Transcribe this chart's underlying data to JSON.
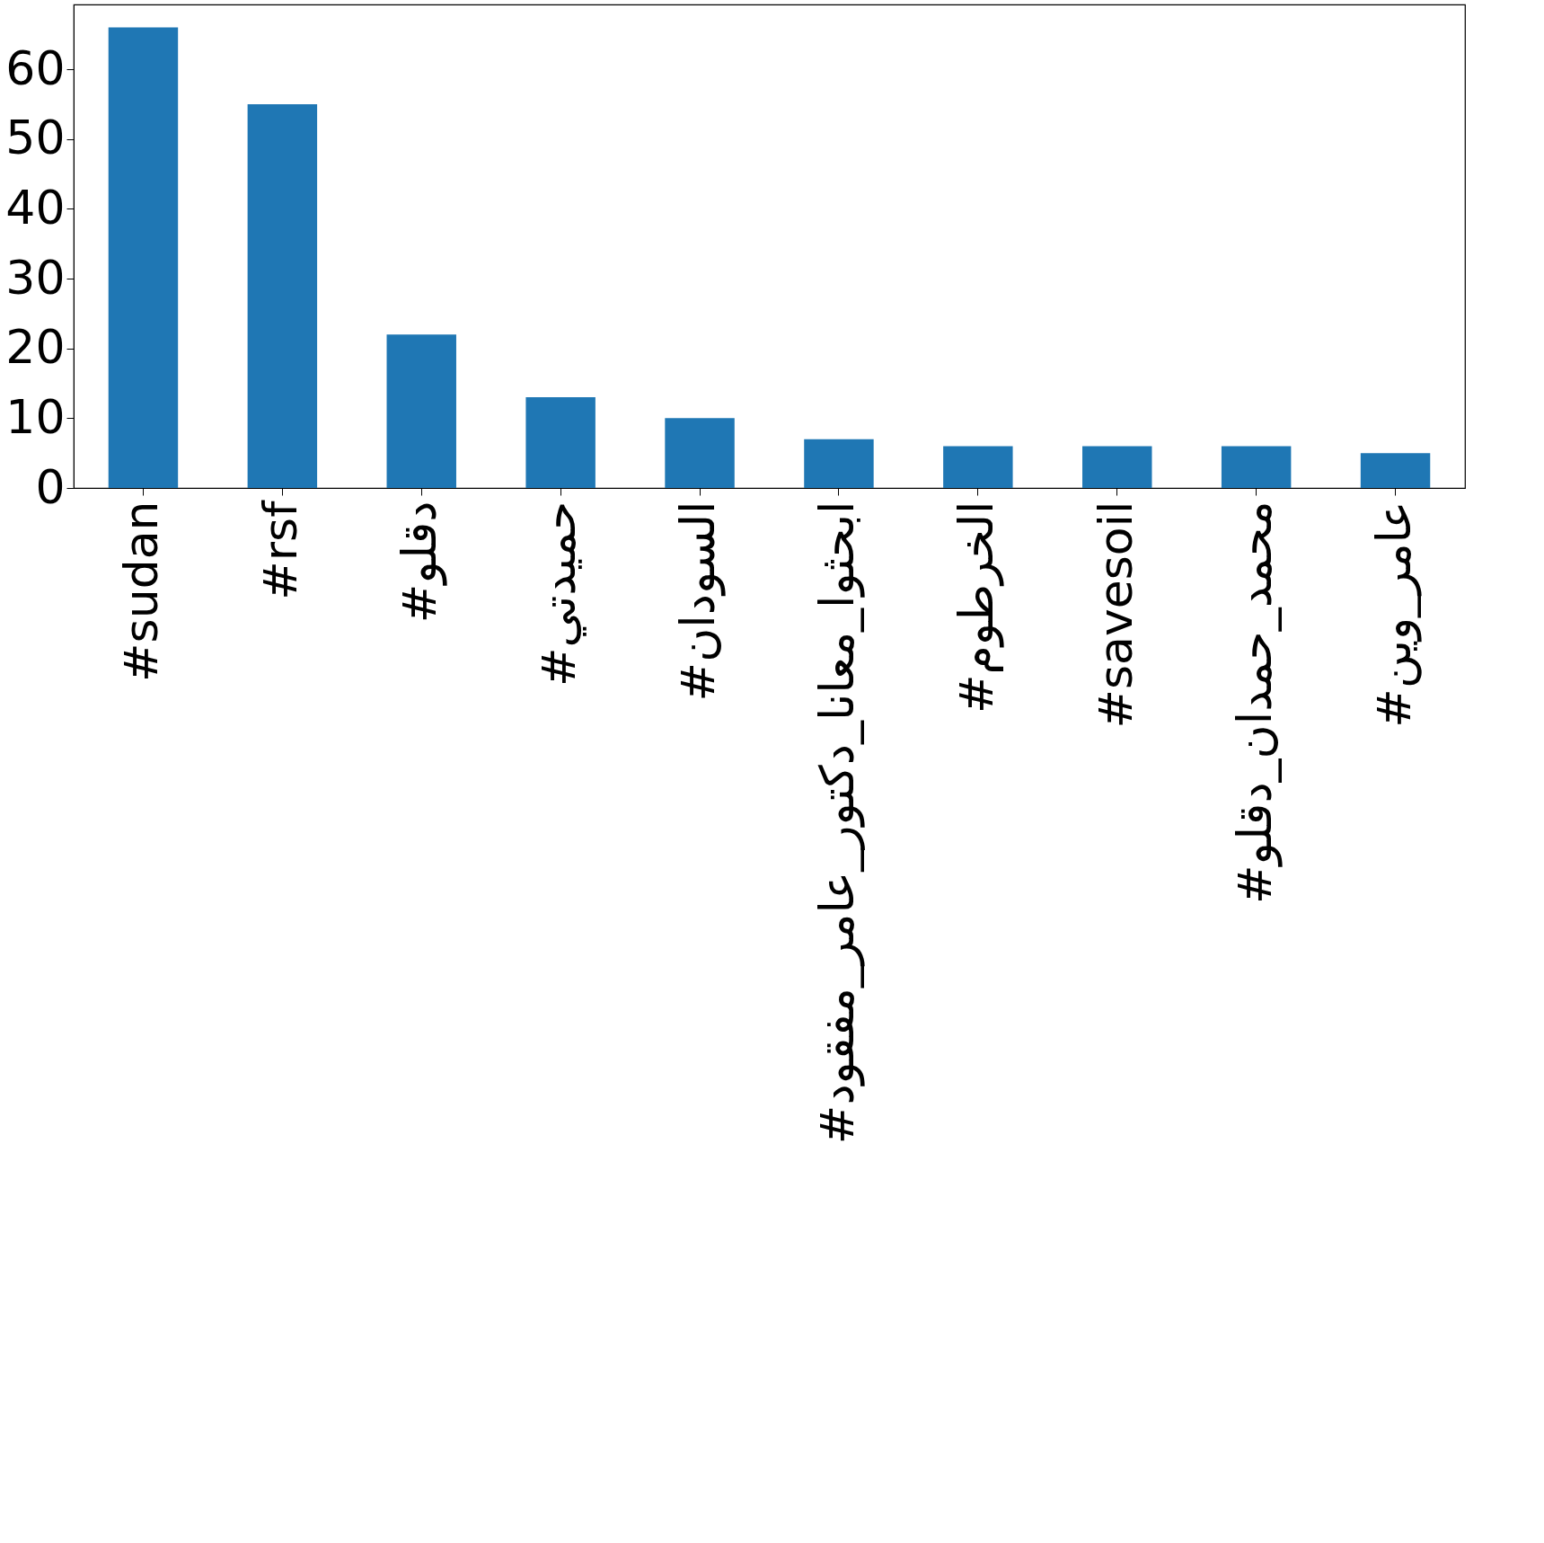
{
  "chart_data": {
    "type": "bar",
    "categories": [
      "#sudan",
      "#rsf",
      "#دقلو",
      "#حميدتي",
      "#السودان",
      "#ابحثوا_معانا_دكتور_عامر_مفقود",
      "#الخرطوم",
      "#savesoil",
      "#محمد_حمدان_دقلو",
      "#عامر_وين"
    ],
    "values": [
      66,
      55,
      22,
      13,
      10,
      7,
      6,
      6,
      6,
      5
    ],
    "color": "#1f77b4",
    "ylim": [
      0,
      69.3
    ],
    "yticks": [
      0,
      10,
      20,
      30,
      40,
      50,
      60
    ],
    "grid": false
  }
}
